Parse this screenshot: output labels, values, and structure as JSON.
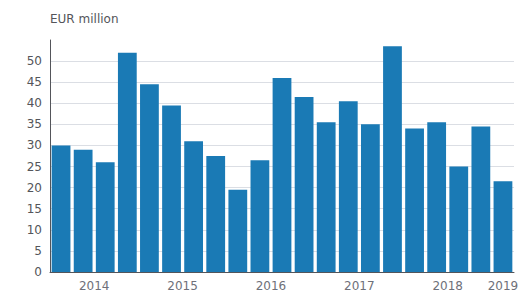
{
  "chart_data": {
    "type": "bar",
    "ylabel": "EUR million",
    "categories": [
      "2014",
      null,
      null,
      null,
      "2015",
      null,
      null,
      null,
      "2016",
      null,
      null,
      null,
      "2017",
      null,
      null,
      null,
      "2018",
      null,
      null,
      null,
      "2019"
    ],
    "values": [
      30.0,
      29.0,
      26.0,
      52.0,
      44.5,
      39.5,
      31.0,
      27.5,
      19.5,
      26.5,
      46.0,
      41.5,
      35.5,
      40.5,
      35.0,
      53.5,
      34.0,
      35.5,
      25.0,
      34.5,
      21.5
    ],
    "color": "#1a7ab5",
    "ylim": [
      0,
      55
    ],
    "yticks": [
      0,
      5,
      10,
      15,
      20,
      25,
      30,
      35,
      40,
      45,
      50
    ],
    "grid": true
  }
}
